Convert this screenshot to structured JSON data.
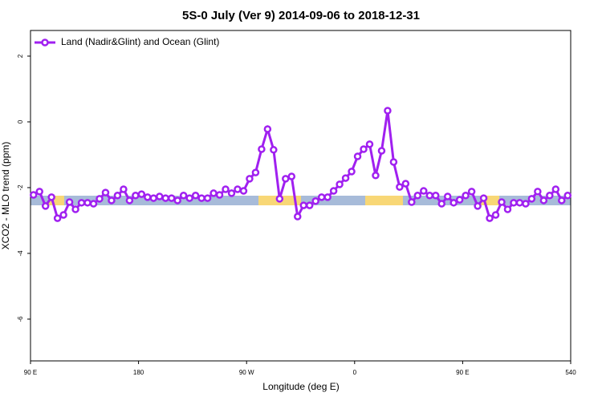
{
  "chart_data": {
    "type": "line",
    "title": "5S-0 July (Ver 9)   2014-09-06 to 2018-12-31",
    "x_label": "Longitude (deg E)",
    "y_label": "XCO2 - MLO trend (ppm)",
    "legend_position": "top-left",
    "x": [
      92.5,
      97.5,
      102.5,
      107.5,
      112.5,
      117.5,
      122.5,
      127.5,
      132.5,
      137.5,
      142.5,
      147.5,
      152.5,
      157.5,
      162.5,
      167.5,
      172.5,
      177.5,
      182.5,
      187.5,
      192.5,
      197.5,
      202.5,
      207.5,
      212.5,
      217.5,
      222.5,
      227.5,
      232.5,
      237.5,
      242.5,
      247.5,
      252.5,
      257.5,
      262.5,
      267.5,
      272.5,
      277.5,
      282.5,
      287.5,
      292.5,
      297.5,
      302.5,
      307.5,
      312.5,
      317.5,
      322.5,
      327.5,
      332.5,
      337.5,
      342.5,
      347.5,
      352.5,
      357.5,
      362.5,
      367.5,
      372.5,
      377.5,
      382.5,
      387.5,
      392.5,
      397.5,
      402.5,
      407.5,
      412.5,
      417.5,
      422.5,
      427.5,
      432.5,
      437.5,
      442.5,
      447.5,
      452.5,
      457.5,
      462.5,
      467.5,
      472.5,
      477.5,
      482.5,
      487.5,
      492.5,
      497.5,
      502.5,
      507.5,
      512.5,
      517.5,
      522.5,
      527.5,
      532.5,
      537.5
    ],
    "series": [
      {
        "name": "Land (Nadir&Glint) and Ocean (Glint)",
        "color": "#a020f0",
        "values": [
          -2.22,
          -2.12,
          -2.56,
          -2.29,
          -2.93,
          -2.83,
          -2.44,
          -2.66,
          -2.46,
          -2.46,
          -2.49,
          -2.34,
          -2.15,
          -2.39,
          -2.24,
          -2.05,
          -2.39,
          -2.24,
          -2.2,
          -2.29,
          -2.32,
          -2.27,
          -2.32,
          -2.32,
          -2.39,
          -2.24,
          -2.32,
          -2.24,
          -2.32,
          -2.32,
          -2.17,
          -2.22,
          -2.05,
          -2.17,
          -2.05,
          -2.1,
          -1.73,
          -1.54,
          -0.83,
          -0.22,
          -0.85,
          -2.34,
          -1.73,
          -1.66,
          -2.88,
          -2.54,
          -2.54,
          -2.41,
          -2.29,
          -2.29,
          -2.1,
          -1.9,
          -1.71,
          -1.51,
          -1.05,
          -0.83,
          -0.68,
          -1.63,
          -0.88,
          0.34,
          -1.22,
          -1.98,
          -1.88,
          -2.44,
          -2.24,
          -2.1,
          -2.24,
          -2.24,
          -2.49,
          -2.27,
          -2.46,
          -2.37,
          -2.24,
          -2.12,
          -2.56,
          -2.32,
          -2.93,
          -2.83,
          -2.44,
          -2.66,
          -2.46,
          -2.46,
          -2.49,
          -2.34,
          -2.12,
          -2.39,
          -2.24,
          -2.05,
          -2.39,
          -2.24
        ]
      }
    ],
    "xlim": [
      90,
      540
    ],
    "xticks": [
      {
        "value": 90,
        "label": "90 E"
      },
      180,
      {
        "value": 270,
        "label": "90 W"
      },
      {
        "value": 360,
        "label": "0"
      },
      {
        "value": 450,
        "label": "90 E"
      },
      540
    ],
    "ylim": [
      -7.27,
      2.78
    ],
    "yticks": [
      2,
      0,
      -2,
      -4,
      -6
    ]
  }
}
